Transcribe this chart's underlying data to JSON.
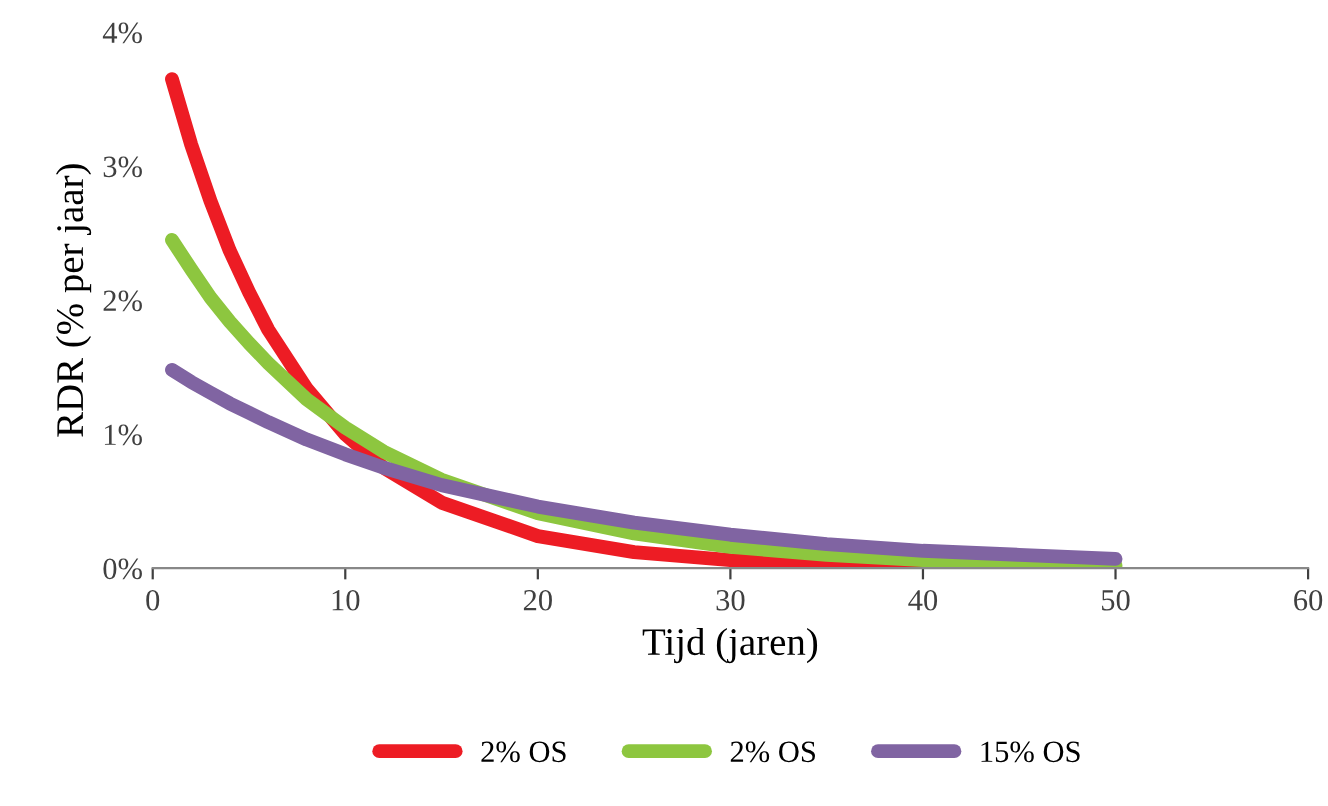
{
  "chart_data": {
    "type": "line",
    "xlabel": "Tijd (jaren)",
    "ylabel": "RDR (% per jaar)",
    "x": [
      1,
      2,
      3,
      4,
      5,
      6,
      8,
      10,
      12,
      15,
      20,
      25,
      30,
      35,
      40,
      45,
      50
    ],
    "series": [
      {
        "name": "2% OS",
        "color": "#ed1c24",
        "values": [
          3.65,
          3.16,
          2.74,
          2.37,
          2.06,
          1.78,
          1.34,
          1.0,
          0.75,
          0.49,
          0.24,
          0.12,
          0.06,
          0.03,
          0.01,
          0.0,
          0.0
        ]
      },
      {
        "name": "2% OS",
        "color": "#8dc63f",
        "values": [
          2.45,
          2.23,
          2.02,
          1.84,
          1.68,
          1.53,
          1.26,
          1.05,
          0.87,
          0.66,
          0.41,
          0.26,
          0.16,
          0.1,
          0.06,
          0.04,
          0.02
        ]
      },
      {
        "name": "15% OS",
        "color": "#8064a2",
        "values": [
          1.48,
          1.39,
          1.31,
          1.23,
          1.16,
          1.09,
          0.96,
          0.85,
          0.75,
          0.62,
          0.46,
          0.34,
          0.25,
          0.18,
          0.13,
          0.1,
          0.07
        ]
      }
    ],
    "xlim": [
      0,
      60
    ],
    "xticks": [
      0,
      10,
      20,
      30,
      40,
      50,
      60
    ],
    "ylim": [
      0,
      4
    ],
    "yticks": [
      {
        "value": 0,
        "label": "0%"
      },
      {
        "value": 1,
        "label": "1%"
      },
      {
        "value": 2,
        "label": "2%"
      },
      {
        "value": 3,
        "label": "3%"
      },
      {
        "value": 4,
        "label": "4%"
      }
    ],
    "grid": false,
    "legend": "bottom",
    "marker": "none",
    "line_style": "solid"
  }
}
